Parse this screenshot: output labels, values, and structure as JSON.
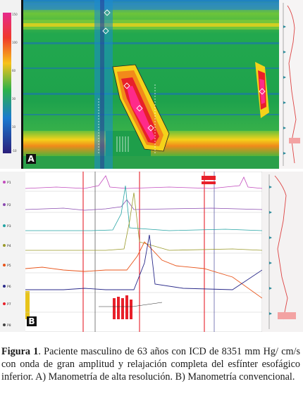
{
  "figure": {
    "panel_a_letter": "A",
    "panel_b_letter": "B",
    "caption_label": "Figura 1",
    "caption_text": ". Paciente masculino de 63 años con ICD de 8351 mm Hg/ cm/s con onda de gran amplitud y relajación completa del esfínter esofágico inferior. A) Manometría de alta resolución. B) Manometría convencional."
  },
  "panel_b_channels": [
    "P1",
    "P2",
    "P3",
    "P4",
    "P5",
    "P6",
    "P7",
    "P8"
  ],
  "colors": {
    "hrm_background": "#1aa84a",
    "contraction_peak": "#ff1a7a",
    "marker_red": "#e8202a",
    "trace_pink": "#c24bbd",
    "trace_teal": "#23a3a3",
    "trace_olive": "#9a9a2a",
    "trace_orange": "#e8541a",
    "trace_navy": "#2a2a8a"
  }
}
